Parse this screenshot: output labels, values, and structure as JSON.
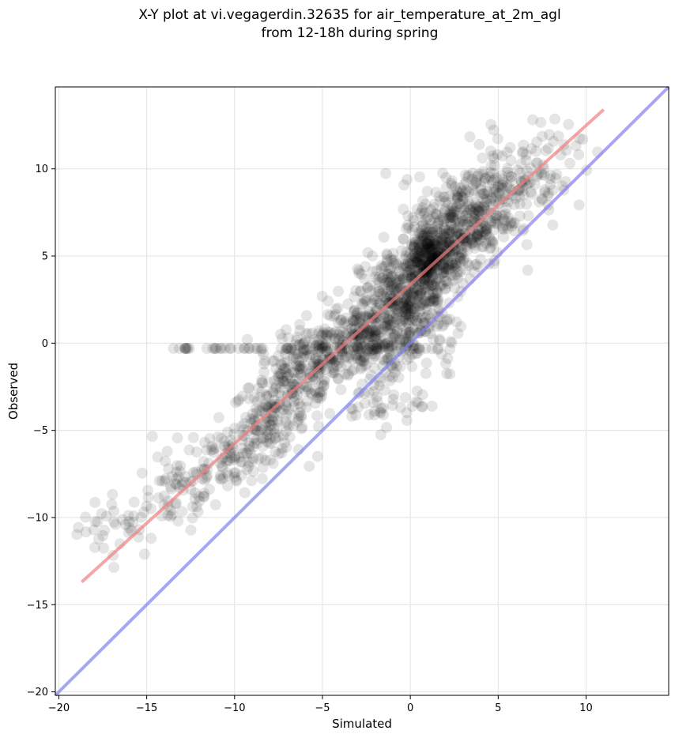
{
  "chart_data": {
    "type": "scatter",
    "title_line1": "X-Y plot at vi.vegagerdin.32635 for air_temperature_at_2m_agl",
    "title_line2": "from 12-18h during spring",
    "xlabel": "Simulated",
    "ylabel": "Observed",
    "xlim": [
      -20.2,
      14.7
    ],
    "ylim": [
      -20.2,
      14.7
    ],
    "xticks": [
      -20,
      -15,
      -10,
      -5,
      0,
      5,
      10
    ],
    "yticks": [
      -20,
      -15,
      -10,
      -5,
      0,
      5,
      10
    ],
    "xtick_labels": [
      "−20",
      "−15",
      "−10",
      "−5",
      "0",
      "5",
      "10"
    ],
    "ytick_labels": [
      "−20",
      "−15",
      "−10",
      "−5",
      "0",
      "5",
      "10"
    ],
    "grid": true,
    "series": [
      {
        "marker": "circle",
        "color": "#000000",
        "alpha": 0.1,
        "clusters": [
          {
            "cx": -16.5,
            "cy": -10.5,
            "sx": 1.2,
            "sy": 0.9,
            "n": 40
          },
          {
            "cx": -13.2,
            "cy": -8.7,
            "sx": 1.0,
            "sy": 1.0,
            "n": 60
          },
          {
            "cx": -10.5,
            "cy": -6.5,
            "sx": 1.2,
            "sy": 1.0,
            "n": 90
          },
          {
            "cx": -8.0,
            "cy": -4.5,
            "sx": 1.0,
            "sy": 1.0,
            "n": 130
          },
          {
            "cx": -6.5,
            "cy": -2.5,
            "sx": 1.3,
            "sy": 1.0,
            "n": 120
          },
          {
            "cx": -5.0,
            "cy": -0.5,
            "sx": 1.5,
            "sy": 0.7,
            "n": 150
          },
          {
            "cx": -2.5,
            "cy": 0.5,
            "sx": 1.3,
            "sy": 1.0,
            "n": 220
          },
          {
            "cx": -0.5,
            "cy": 2.5,
            "sx": 1.2,
            "sy": 1.2,
            "n": 300
          },
          {
            "cx": 1.2,
            "cy": 4.8,
            "sx": 0.9,
            "sy": 1.0,
            "n": 400
          },
          {
            "cx": 3.0,
            "cy": 7.0,
            "sx": 1.3,
            "sy": 1.3,
            "n": 300
          },
          {
            "cx": 5.5,
            "cy": 9.0,
            "sx": 1.5,
            "sy": 1.3,
            "n": 140
          },
          {
            "cx": 7.5,
            "cy": 11.0,
            "sx": 1.2,
            "sy": 1.0,
            "n": 40
          },
          {
            "cx": 1.0,
            "cy": 0.5,
            "sx": 1.0,
            "sy": 1.5,
            "n": 60
          },
          {
            "cx": -2.0,
            "cy": -3.0,
            "sx": 1.3,
            "sy": 1.0,
            "n": 60
          }
        ],
        "flat_band": {
          "y": -0.3,
          "xmin": -13.5,
          "xmax": 2.0,
          "n": 60
        }
      }
    ],
    "regression_line": {
      "x": [
        -18.7,
        11.0
      ],
      "y": [
        -13.7,
        13.4
      ],
      "color": "#f08080",
      "alpha": 0.7
    },
    "identity_line": {
      "x": [
        -20.2,
        14.7
      ],
      "y": [
        -20.2,
        14.7
      ],
      "color": "#8080f0",
      "alpha": 0.7
    }
  }
}
